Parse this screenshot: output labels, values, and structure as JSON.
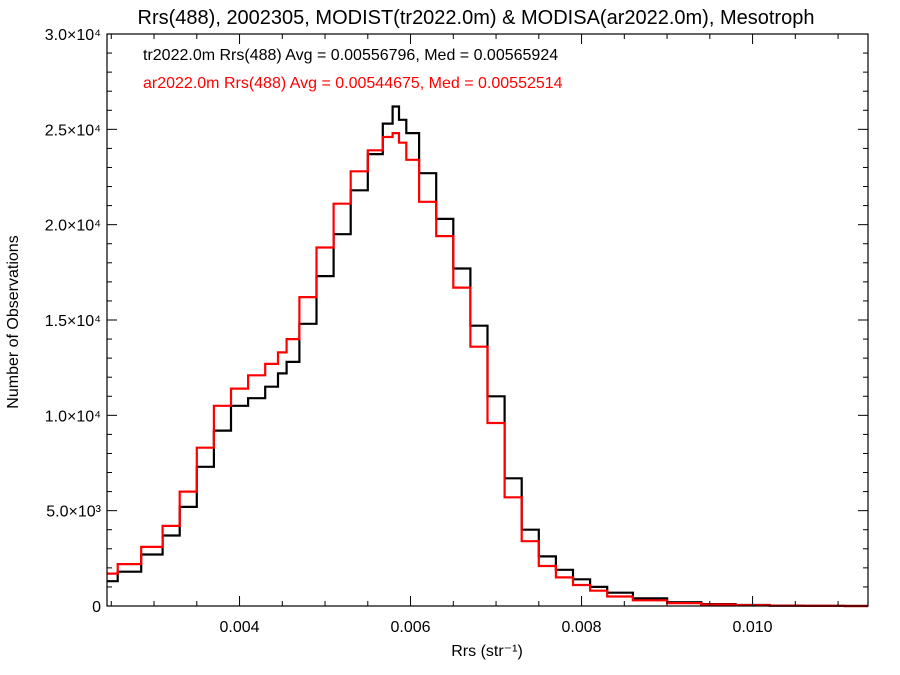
{
  "chart_data": {
    "type": "line",
    "step": true,
    "title": "Rrs(488), 2002305, MODIST(tr2022.0m) & MODISA(ar2022.0m), Mesotroph",
    "xlabel": "Rrs (str⁻¹)",
    "ylabel": "Number of Observations",
    "xlim": [
      0.00245,
      0.01135
    ],
    "ylim": [
      0,
      30000
    ],
    "x_ticks": [
      {
        "value": 0.004,
        "label": "0.004"
      },
      {
        "value": 0.006,
        "label": "0.006"
      },
      {
        "value": 0.008,
        "label": "0.008"
      },
      {
        "value": 0.01,
        "label": "0.010"
      }
    ],
    "y_ticks": [
      {
        "value": 0,
        "label": "0"
      },
      {
        "value": 5000,
        "label": "5.0×10³"
      },
      {
        "value": 10000,
        "label": "1.0×10⁴"
      },
      {
        "value": 15000,
        "label": "1.5×10⁴"
      },
      {
        "value": 20000,
        "label": "2.0×10⁴"
      },
      {
        "value": 25000,
        "label": "2.5×10⁴"
      },
      {
        "value": 30000,
        "label": "3.0×10⁴"
      }
    ],
    "legend": [
      {
        "text": "tr2022.0m Rrs(488) Avg = 0.00556796, Med = 0.00565924",
        "color": "#000000"
      },
      {
        "text": "ar2022.0m Rrs(488) Avg = 0.00544675, Med = 0.00552514",
        "color": "#ff0000"
      }
    ],
    "legend_position": "top-left",
    "grid": false,
    "x": [
      0.00245,
      0.0027,
      0.003,
      0.0032,
      0.0034,
      0.0036,
      0.0038,
      0.004,
      0.0042,
      0.0044,
      0.0045,
      0.0046,
      0.0048,
      0.005,
      0.0052,
      0.0054,
      0.0056,
      0.00575,
      0.00583,
      0.0059,
      0.006,
      0.0062,
      0.0064,
      0.0066,
      0.0068,
      0.007,
      0.0072,
      0.0074,
      0.0076,
      0.0078,
      0.008,
      0.0082,
      0.0084,
      0.0088,
      0.0092,
      0.0096,
      0.01,
      0.0104,
      0.0108,
      0.01135
    ],
    "series": [
      {
        "name": "tr2022.0m",
        "color": "#000000",
        "values": [
          1300,
          1800,
          2700,
          3700,
          5200,
          7300,
          9200,
          10500,
          10900,
          11500,
          12200,
          12800,
          14800,
          17300,
          19500,
          21800,
          23700,
          25300,
          26200,
          25500,
          24800,
          22700,
          20300,
          17700,
          14700,
          11000,
          6700,
          4000,
          2600,
          1900,
          1400,
          1000,
          700,
          400,
          200,
          100,
          50,
          20,
          10,
          0
        ]
      },
      {
        "name": "ar2022.0m",
        "color": "#ff0000",
        "values": [
          1700,
          2200,
          3100,
          4200,
          6000,
          8300,
          10500,
          11400,
          12100,
          12700,
          13300,
          14000,
          16200,
          18800,
          21100,
          22800,
          23900,
          24600,
          24800,
          24300,
          23400,
          21200,
          19400,
          16700,
          13600,
          9600,
          5700,
          3400,
          2100,
          1500,
          1100,
          800,
          500,
          300,
          150,
          80,
          40,
          15,
          5,
          0
        ]
      }
    ]
  }
}
